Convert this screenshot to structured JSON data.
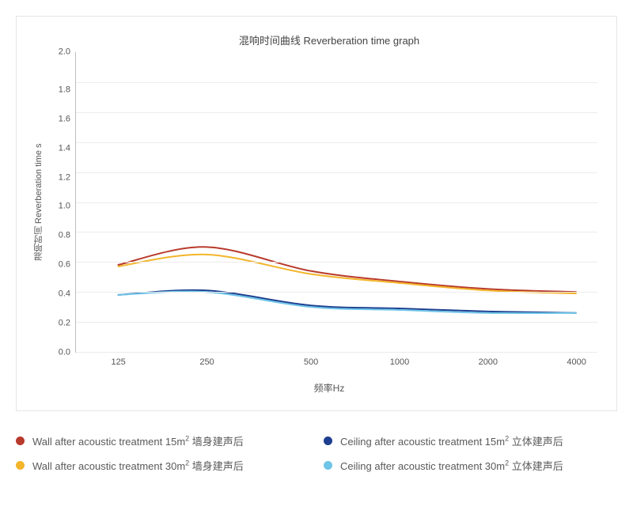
{
  "chart": {
    "type": "line",
    "title": "混响时间曲线 Reverberation time graph",
    "xlabel": "频率Hz",
    "ylabel": "混响时间 Reverberation time s",
    "background_color": "#ffffff",
    "border_color": "#e5e5e5",
    "grid_color": "#ececec",
    "axis_color": "#bfbfbf",
    "text_color": "#555555",
    "title_fontsize": 13,
    "label_fontsize": 12,
    "tick_fontsize": 11,
    "ylim": [
      0.0,
      2.0
    ],
    "ytick_step": 0.2,
    "yticks": [
      "2.0",
      "1.8",
      "1.6",
      "1.4",
      "1.2",
      "1.0",
      "0.8",
      "0.6",
      "0.4",
      "0.2",
      "0.0"
    ],
    "x_categories": [
      "125",
      "250",
      "500",
      "1000",
      "2000",
      "4000"
    ],
    "x_positions_pct": [
      8,
      25,
      45,
      62,
      79,
      96
    ],
    "line_width": 2,
    "series": [
      {
        "id": "wall15",
        "label_en": "Wall after acoustic treatment 15m²",
        "label_zh": "墙身建声后",
        "color": "#b83a2b",
        "values": [
          0.58,
          0.7,
          0.54,
          0.47,
          0.42,
          0.4
        ]
      },
      {
        "id": "wall30",
        "label_en": "Wall after acoustic treatment 30m²",
        "label_zh": "墙身建声后",
        "color": "#f3b52b",
        "values": [
          0.57,
          0.65,
          0.52,
          0.46,
          0.41,
          0.39
        ]
      },
      {
        "id": "ceiling15",
        "label_en": "Ceiling after acoustic treatment 15m²",
        "label_zh": "立体建声后",
        "color": "#1e3f8f",
        "values": [
          0.38,
          0.41,
          0.31,
          0.29,
          0.27,
          0.26
        ]
      },
      {
        "id": "ceiling30",
        "label_en": "Ceiling after acoustic treatment 30m²",
        "label_zh": "立体建声后",
        "color": "#6fc4e8",
        "values": [
          0.38,
          0.4,
          0.3,
          0.28,
          0.26,
          0.26
        ]
      }
    ]
  },
  "legend": {
    "items": [
      {
        "series": "wall15",
        "color": "#b83a2b",
        "text_before": "Wall after acoustic treatment 15m",
        "sup": "2",
        "text_after": " 墙身建声后"
      },
      {
        "series": "ceiling15",
        "color": "#1e3f8f",
        "text_before": "Ceiling after acoustic treatment 15m",
        "sup": "2",
        "text_after": " 立体建声后"
      },
      {
        "series": "wall30",
        "color": "#f3b52b",
        "text_before": "Wall after acoustic treatment 30m",
        "sup": "2",
        "text_after": " 墙身建声后"
      },
      {
        "series": "ceiling30",
        "color": "#6fc4e8",
        "text_before": "Ceiling after acoustic treatment 30m",
        "sup": "2",
        "text_after": " 立体建声后"
      }
    ]
  }
}
